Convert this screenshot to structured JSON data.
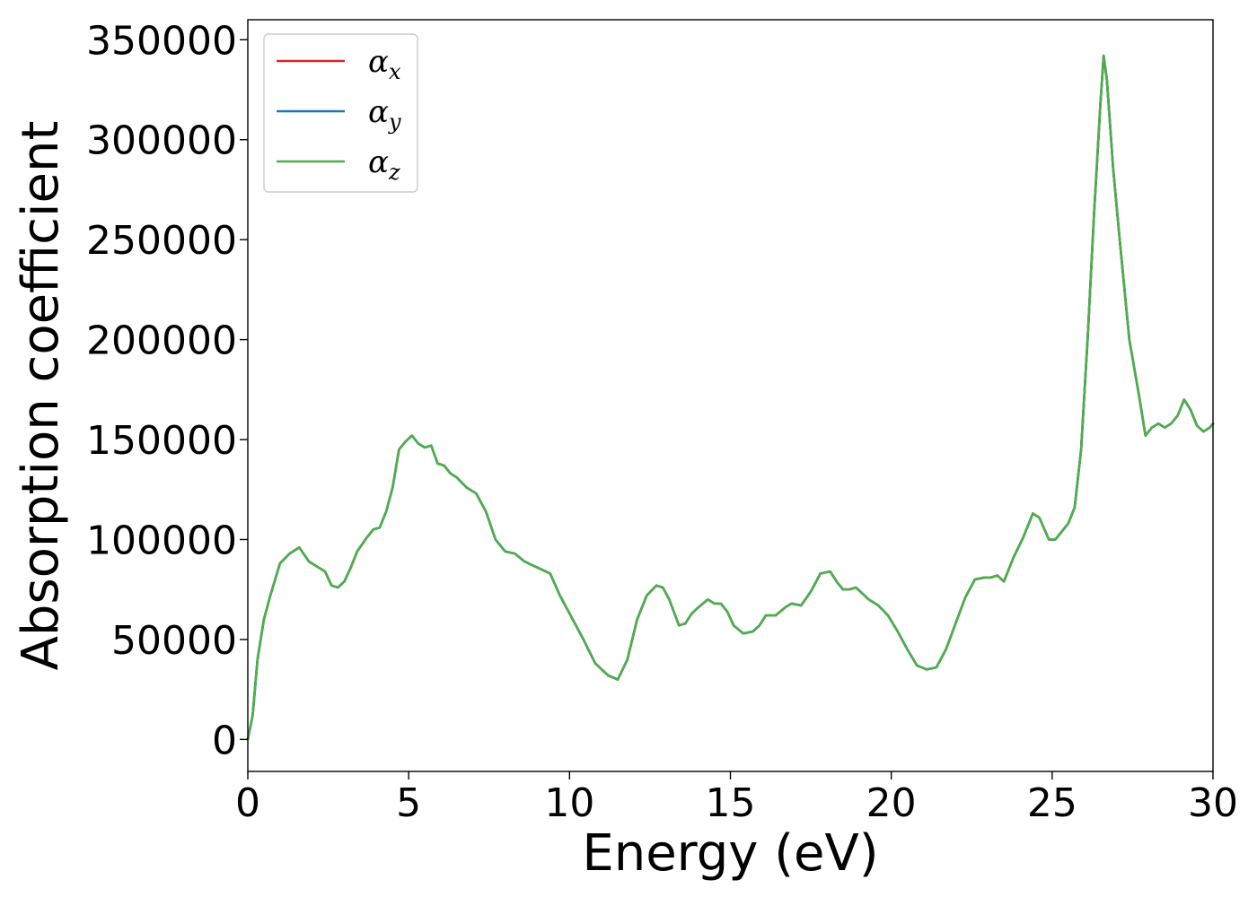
{
  "chart_data": {
    "type": "line",
    "title": "",
    "xlabel": "Energy (eV)",
    "ylabel": "Absorption coefficient",
    "xlim": [
      0,
      30
    ],
    "ylim": [
      -16000,
      360000
    ],
    "xticks": [
      0,
      5,
      10,
      15,
      20,
      25,
      30
    ],
    "yticks": [
      0,
      50000,
      100000,
      150000,
      200000,
      250000,
      300000,
      350000
    ],
    "grid": false,
    "legend": "top-left",
    "series": [
      {
        "name": "x",
        "symbol": "α",
        "color": "#d62728",
        "same_as": "z"
      },
      {
        "name": "y",
        "symbol": "α",
        "color": "#1f77b4",
        "same_as": "z"
      },
      {
        "name": "z",
        "symbol": "α",
        "color": "#4daf4a"
      }
    ],
    "x": [
      0,
      0.15,
      0.3,
      0.5,
      0.7,
      1.0,
      1.3,
      1.6,
      1.9,
      2.2,
      2.4,
      2.6,
      2.8,
      3.0,
      3.2,
      3.4,
      3.7,
      3.9,
      4.1,
      4.3,
      4.5,
      4.7,
      4.9,
      5.1,
      5.3,
      5.5,
      5.7,
      5.9,
      6.1,
      6.3,
      6.5,
      6.8,
      7.1,
      7.4,
      7.7,
      8.0,
      8.3,
      8.6,
      9.0,
      9.4,
      9.7,
      10.0,
      10.4,
      10.8,
      11.2,
      11.5,
      11.8,
      12.1,
      12.4,
      12.7,
      12.9,
      13.1,
      13.4,
      13.6,
      13.8,
      14.0,
      14.3,
      14.5,
      14.7,
      14.9,
      15.1,
      15.4,
      15.7,
      15.9,
      16.1,
      16.4,
      16.7,
      16.9,
      17.2,
      17.5,
      17.8,
      18.1,
      18.3,
      18.5,
      18.7,
      18.9,
      19.1,
      19.3,
      19.6,
      19.9,
      20.2,
      20.5,
      20.8,
      21.1,
      21.4,
      21.7,
      22.0,
      22.3,
      22.6,
      22.9,
      23.1,
      23.3,
      23.5,
      23.8,
      24.1,
      24.4,
      24.6,
      24.9,
      25.1,
      25.3,
      25.5,
      25.7,
      25.9,
      26.1,
      26.3,
      26.5,
      26.6,
      26.7,
      26.9,
      27.1,
      27.4,
      27.7,
      27.9,
      28.1,
      28.3,
      28.5,
      28.7,
      28.9,
      29.1,
      29.3,
      29.5,
      29.7,
      29.9,
      30.0
    ],
    "y": [
      0,
      12000,
      40000,
      60000,
      72000,
      88000,
      93000,
      96000,
      89000,
      86000,
      84000,
      77000,
      76000,
      79000,
      86000,
      94000,
      101000,
      105000,
      106000,
      114000,
      126000,
      145000,
      149000,
      152000,
      148000,
      146000,
      147000,
      138000,
      137000,
      133000,
      131000,
      126000,
      123000,
      114000,
      100000,
      94000,
      93000,
      89000,
      86000,
      83000,
      72000,
      63000,
      51000,
      38000,
      32000,
      30000,
      40000,
      60000,
      72000,
      77000,
      76000,
      70000,
      57000,
      58000,
      63000,
      66000,
      70000,
      68000,
      68000,
      64000,
      57000,
      53000,
      54000,
      57000,
      62000,
      62000,
      66000,
      68000,
      67000,
      74000,
      83000,
      84000,
      79000,
      75000,
      75000,
      76000,
      73000,
      70000,
      67000,
      62000,
      54000,
      45000,
      37000,
      35000,
      36000,
      45000,
      58000,
      71000,
      80000,
      81000,
      81000,
      82000,
      79000,
      91000,
      101000,
      113000,
      111000,
      100000,
      100000,
      104000,
      108000,
      116000,
      145000,
      200000,
      262000,
      318000,
      342000,
      330000,
      285000,
      250000,
      200000,
      172000,
      152000,
      156000,
      158000,
      156000,
      158000,
      162000,
      170000,
      165000,
      157000,
      154000,
      156000,
      158000
    ]
  }
}
